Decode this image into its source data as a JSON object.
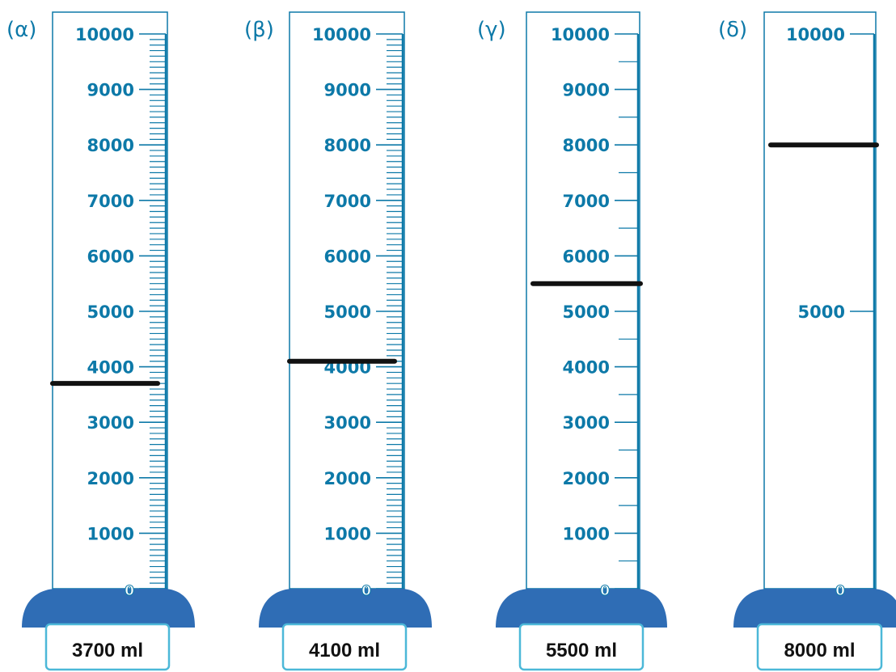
{
  "colors": {
    "scale": "#0d79a8",
    "base": "#2f6db5",
    "box_border": "#4cb8d8",
    "liquid_line": "#111111"
  },
  "cylinders": [
    {
      "panel_label": "(α)",
      "max_ml": 10000,
      "major_step": 1000,
      "minor_step": 100,
      "tick_labels": [
        "0",
        "1000",
        "2000",
        "3000",
        "4000",
        "5000",
        "6000",
        "7000",
        "8000",
        "9000",
        "10000"
      ],
      "tick_values": [
        0,
        1000,
        2000,
        3000,
        4000,
        5000,
        6000,
        7000,
        8000,
        9000,
        10000
      ],
      "liquid_level_ml": 3700,
      "answer": "3700 ml"
    },
    {
      "panel_label": "(β)",
      "max_ml": 10000,
      "major_step": 1000,
      "minor_step": 100,
      "tick_labels": [
        "0",
        "1000",
        "2000",
        "3000",
        "4000",
        "5000",
        "6000",
        "7000",
        "8000",
        "9000",
        "10000"
      ],
      "tick_values": [
        0,
        1000,
        2000,
        3000,
        4000,
        5000,
        6000,
        7000,
        8000,
        9000,
        10000
      ],
      "liquid_level_ml": 4100,
      "answer": "4100 ml"
    },
    {
      "panel_label": "(γ)",
      "max_ml": 10000,
      "major_step": 1000,
      "minor_step": 500,
      "tick_labels": [
        "0",
        "1000",
        "2000",
        "3000",
        "4000",
        "5000",
        "6000",
        "7000",
        "8000",
        "9000",
        "10000"
      ],
      "tick_values": [
        0,
        1000,
        2000,
        3000,
        4000,
        5000,
        6000,
        7000,
        8000,
        9000,
        10000
      ],
      "liquid_level_ml": 5500,
      "answer": "5500 ml"
    },
    {
      "panel_label": "(δ)",
      "max_ml": 10000,
      "major_step": 5000,
      "minor_step": 0,
      "tick_labels": [
        "0",
        "5000",
        "10000"
      ],
      "tick_values": [
        0,
        5000,
        10000
      ],
      "liquid_level_ml": 8000,
      "answer": "8000 ml"
    }
  ]
}
